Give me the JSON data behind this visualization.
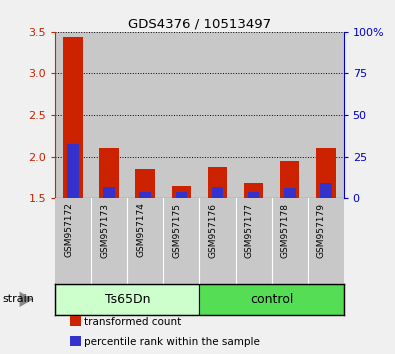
{
  "title": "GDS4376 / 10513497",
  "samples": [
    "GSM957172",
    "GSM957173",
    "GSM957174",
    "GSM957175",
    "GSM957176",
    "GSM957177",
    "GSM957178",
    "GSM957179"
  ],
  "red_values": [
    3.44,
    2.1,
    1.85,
    1.65,
    1.88,
    1.68,
    1.95,
    2.1
  ],
  "blue_values": [
    2.15,
    1.63,
    1.58,
    1.57,
    1.63,
    1.57,
    1.62,
    1.68
  ],
  "red_base": 1.5,
  "ylim": [
    1.5,
    3.5
  ],
  "yticks_left": [
    1.5,
    2.0,
    2.5,
    3.0,
    3.5
  ],
  "yticks_right": [
    0,
    25,
    50,
    75,
    100
  ],
  "y_right_labels": [
    "0",
    "25",
    "50",
    "75",
    "100%"
  ],
  "left_color": "#cc2200",
  "right_color": "#0000cc",
  "bar_color_red": "#cc2200",
  "bar_color_blue": "#3333cc",
  "groups": [
    {
      "label": "Ts65Dn",
      "start": 0,
      "end": 4,
      "color": "#ccffcc"
    },
    {
      "label": "control",
      "start": 4,
      "end": 8,
      "color": "#55dd55"
    }
  ],
  "strain_label": "strain",
  "legend_items": [
    {
      "color": "#cc2200",
      "label": "transformed count"
    },
    {
      "color": "#3333cc",
      "label": "percentile rank within the sample"
    }
  ],
  "col_bg": "#c8c8c8",
  "plot_bg": "#ffffff",
  "bar_width": 0.55,
  "blue_bar_width": 0.33
}
